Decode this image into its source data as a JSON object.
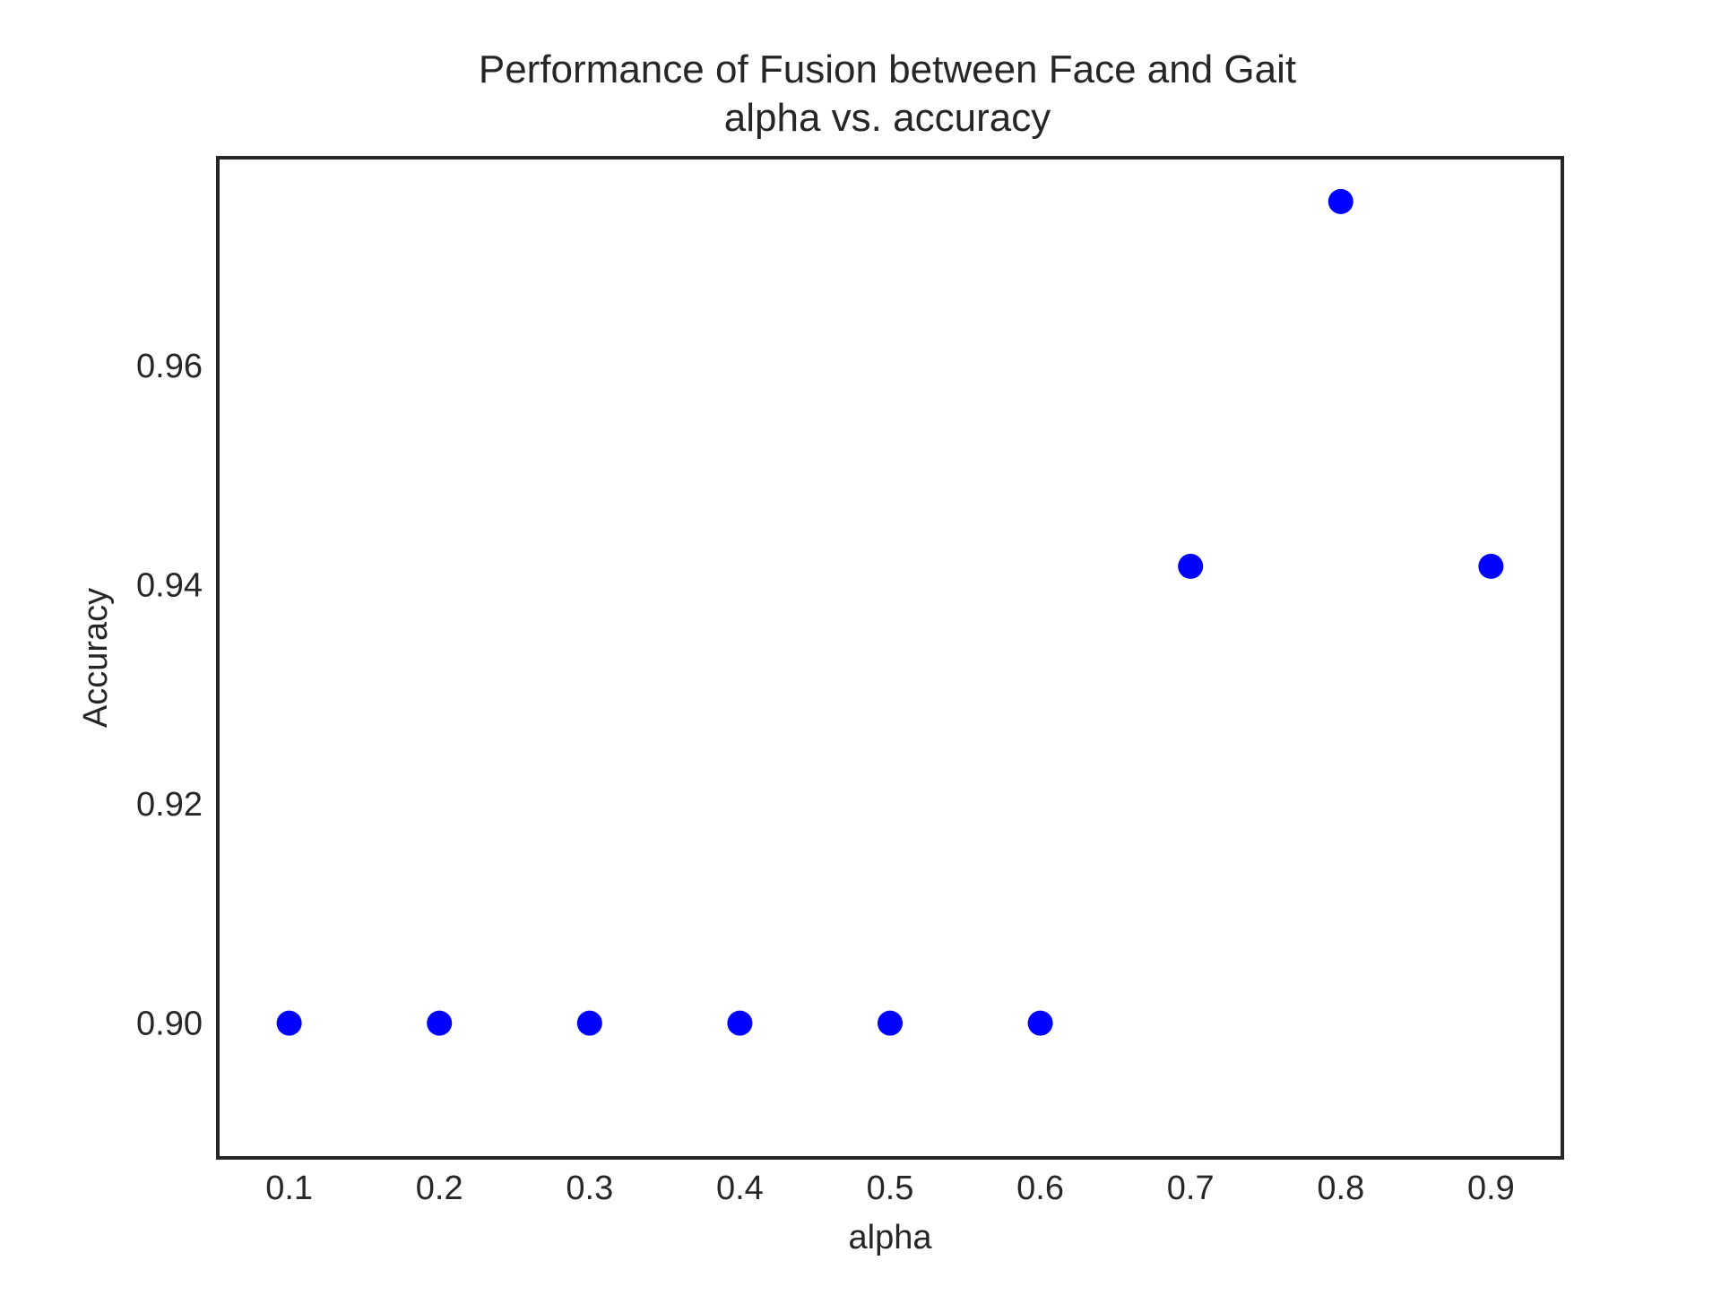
{
  "chart_data": {
    "type": "scatter",
    "title_line1": "Performance of Fusion between Face and Gait",
    "title_line2": "alpha vs. accuracy",
    "xlabel": "alpha",
    "ylabel": "Accuracy",
    "x": [
      0.1,
      0.2,
      0.3,
      0.4,
      0.5,
      0.6,
      0.7,
      0.8,
      0.9
    ],
    "y": [
      0.9,
      0.9,
      0.9,
      0.9,
      0.9,
      0.9,
      0.9417,
      0.975,
      0.9417
    ],
    "xlim": [
      0.0525,
      0.9475
    ],
    "ylim": [
      0.8877,
      0.979
    ],
    "xticks": [
      0.1,
      0.2,
      0.3,
      0.4,
      0.5,
      0.6,
      0.7,
      0.8,
      0.9
    ],
    "xtick_labels": [
      "0.1",
      "0.2",
      "0.3",
      "0.4",
      "0.5",
      "0.6",
      "0.7",
      "0.8",
      "0.9"
    ],
    "yticks": [
      0.9,
      0.92,
      0.94,
      0.96
    ],
    "ytick_labels": [
      "0.90",
      "0.92",
      "0.94",
      "0.96"
    ],
    "marker_color": "#0000ff",
    "frame_color": "#262626",
    "grid": false,
    "legend": false
  }
}
